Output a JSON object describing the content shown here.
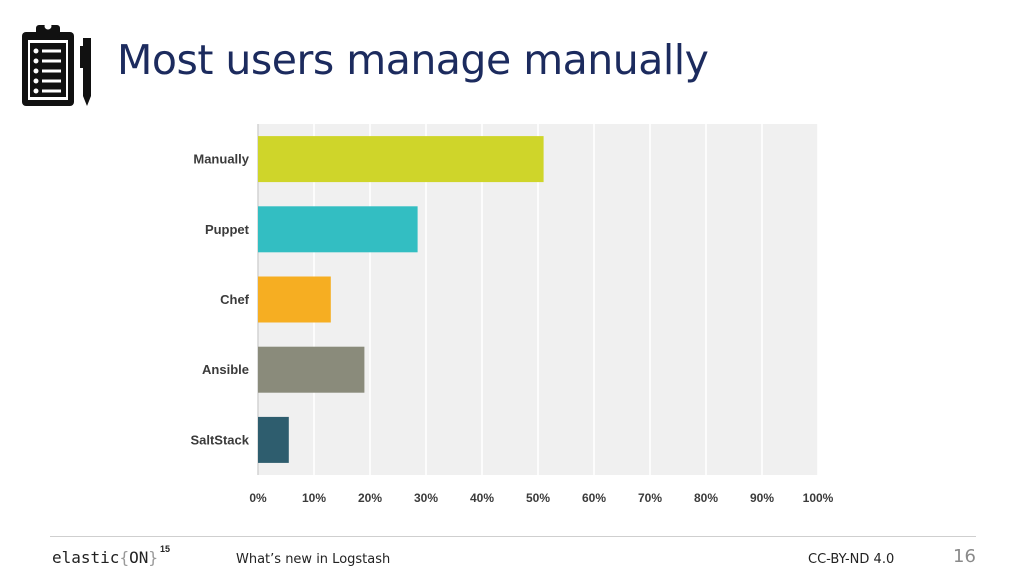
{
  "slide": {
    "title": "Most users manage manually",
    "icon": "clipboard-icon"
  },
  "chart_data": {
    "type": "bar",
    "orientation": "horizontal",
    "categories": [
      "Manually",
      "Puppet",
      "Chef",
      "Ansible",
      "SaltStack"
    ],
    "values": [
      51,
      28.5,
      13,
      19,
      5.5
    ],
    "colors": [
      "#cfd52a",
      "#33bec2",
      "#f6ae22",
      "#8a8b7b",
      "#2e5d6e"
    ],
    "xlim": [
      0,
      100
    ],
    "xticks": [
      "0%",
      "10%",
      "20%",
      "30%",
      "40%",
      "50%",
      "60%",
      "70%",
      "80%",
      "90%",
      "100%"
    ],
    "grid": true,
    "background": "#f0f0f0"
  },
  "footer": {
    "brand_main": "elastic",
    "brand_brace_open": "{",
    "brand_on": "ON",
    "brand_brace_close": "}",
    "brand_sup": "15",
    "talk_title": "What’s new in Logstash",
    "license": "CC-BY-ND 4.0",
    "page_number": "16"
  }
}
